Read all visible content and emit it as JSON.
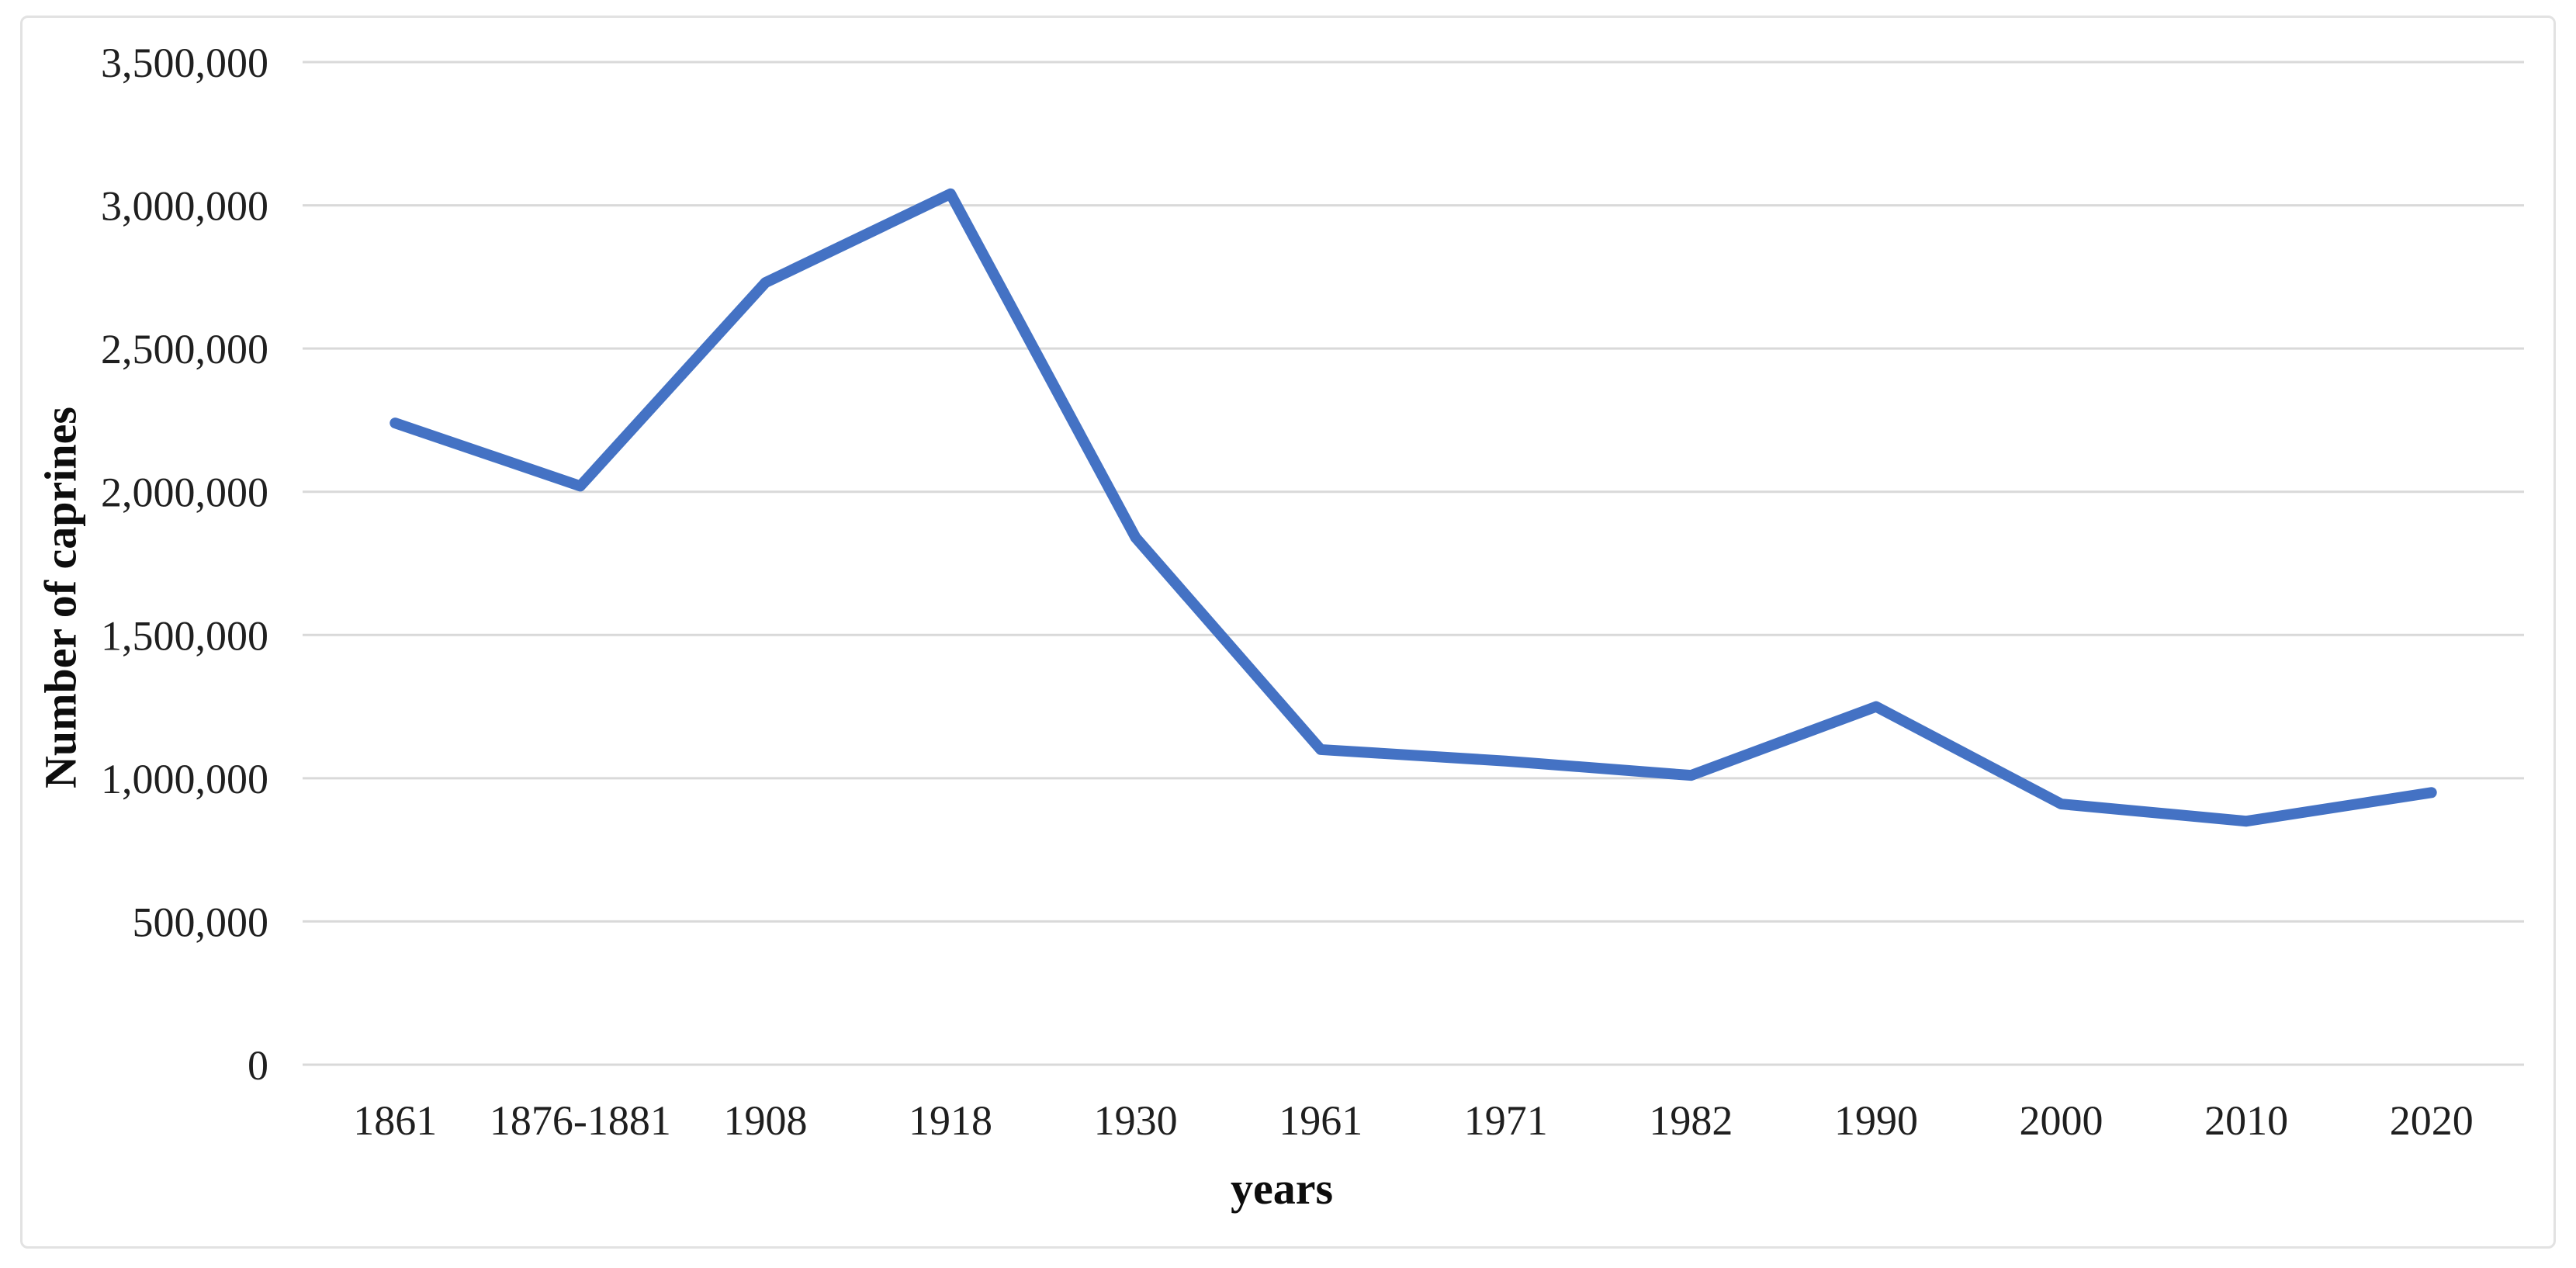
{
  "figure": {
    "kind": "line-chart-figure",
    "background": "#FFFFFF",
    "border_color": "#E2E2E2"
  },
  "chart_data": {
    "type": "line",
    "title": "",
    "xlabel": "years",
    "ylabel": "Number of caprines",
    "categories": [
      "1861",
      "1876-1881",
      "1908",
      "1918",
      "1930",
      "1961",
      "1971",
      "1982",
      "1990",
      "2000",
      "2010",
      "2020"
    ],
    "series": [
      {
        "name": "Number of caprines",
        "values": [
          2240000,
          2020000,
          2730000,
          3040000,
          1840000,
          1100000,
          1060000,
          1010000,
          1250000,
          910000,
          850000,
          950000
        ]
      }
    ],
    "ylim": [
      0,
      3500000
    ],
    "ytick_step": 500000,
    "yticks": [
      0,
      500000,
      1000000,
      1500000,
      2000000,
      2500000,
      3000000,
      3500000
    ],
    "ytick_labels": [
      "0",
      "500,000",
      "1,000,000",
      "1,500,000",
      "2,000,000",
      "2,500,000",
      "3,000,000",
      "3,500,000"
    ],
    "grid": "horizontal",
    "legend_position": "none",
    "line_color": "#4472C4",
    "gridline_color": "#D9D9D9",
    "axis_line_color": "#D9D9D9",
    "text_color": "#1F1F1F"
  }
}
